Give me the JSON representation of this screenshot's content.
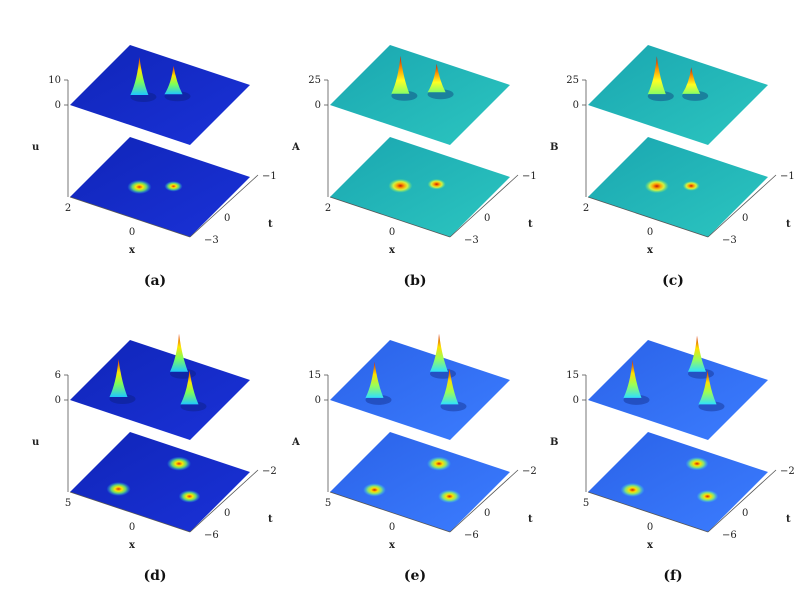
{
  "panels": [
    {
      "caption": "(a)",
      "zlabel": "u",
      "zticks": [
        "10",
        "0"
      ],
      "xticks": [
        "2",
        "0"
      ],
      "xlabel": "x",
      "tticks": [
        "-1",
        "0",
        "-3"
      ],
      "tlabel": "t",
      "theme": "blue",
      "peaks": [
        [
          -0.22,
          -0.1,
          1.0
        ],
        [
          0.15,
          0.05,
          0.75
        ]
      ]
    },
    {
      "caption": "(b)",
      "zlabel": "A",
      "zticks": [
        "25",
        "0"
      ],
      "xticks": [
        "2",
        "0"
      ],
      "xlabel": "x",
      "tticks": [
        "-1",
        "0",
        "-3"
      ],
      "tlabel": "t",
      "theme": "teal",
      "peaks": [
        [
          -0.2,
          -0.12,
          1.0
        ],
        [
          0.2,
          0.02,
          0.75
        ]
      ]
    },
    {
      "caption": "(c)",
      "zlabel": "B",
      "zticks": [
        "25",
        "0"
      ],
      "xticks": [
        "2",
        "0"
      ],
      "xlabel": "x",
      "tticks": [
        "-1",
        "0",
        "-3"
      ],
      "tlabel": "t",
      "theme": "teal",
      "peaks": [
        [
          -0.22,
          -0.12,
          1.0
        ],
        [
          0.15,
          0.04,
          0.7
        ]
      ]
    },
    {
      "caption": "(d)",
      "zlabel": "u",
      "zticks": [
        "6",
        "0"
      ],
      "xticks": [
        "5",
        "0"
      ],
      "xlabel": "x",
      "tticks": [
        "-2",
        "0",
        "-6"
      ],
      "tlabel": "t",
      "theme": "blue",
      "peaks": [
        [
          -0.5,
          -0.05,
          1.0
        ],
        [
          0.35,
          -0.3,
          1.0
        ],
        [
          0.2,
          0.45,
          0.9
        ]
      ]
    },
    {
      "caption": "(e)",
      "zlabel": "A",
      "zticks": [
        "15",
        "0"
      ],
      "xticks": [
        "5",
        "0"
      ],
      "xlabel": "x",
      "tticks": [
        "-2",
        "0",
        "-6"
      ],
      "tlabel": "t",
      "theme": "light",
      "peaks": [
        [
          -0.55,
          -0.05,
          0.95
        ],
        [
          0.35,
          -0.3,
          1.0
        ],
        [
          0.2,
          0.45,
          0.95
        ]
      ]
    },
    {
      "caption": "(f)",
      "zlabel": "B",
      "zticks": [
        "15",
        "0"
      ],
      "xticks": [
        "5",
        "0"
      ],
      "xlabel": "x",
      "tticks": [
        "-2",
        "0",
        "-6"
      ],
      "tlabel": "t",
      "theme": "light",
      "peaks": [
        [
          -0.55,
          -0.05,
          1.0
        ],
        [
          0.35,
          -0.3,
          0.95
        ],
        [
          0.2,
          0.45,
          0.9
        ]
      ]
    }
  ],
  "themes": {
    "blue": {
      "base": "#1a32d8",
      "edge": "#1025b8",
      "hi1": "#1fc6ff",
      "hi2": "#7cff5a",
      "hi3": "#ffe600",
      "hi4": "#e2320a"
    },
    "teal": {
      "base": "#2cc6c0",
      "edge": "#1aa6b0",
      "hi1": "#86ff66",
      "hi2": "#ffff22",
      "hi3": "#ff9a00",
      "hi4": "#c01a0a"
    },
    "light": {
      "base": "#3c7dff",
      "edge": "#2a62e8",
      "hi1": "#2fe0ff",
      "hi2": "#9cff55",
      "hi3": "#ffe000",
      "hi4": "#d12006"
    }
  }
}
